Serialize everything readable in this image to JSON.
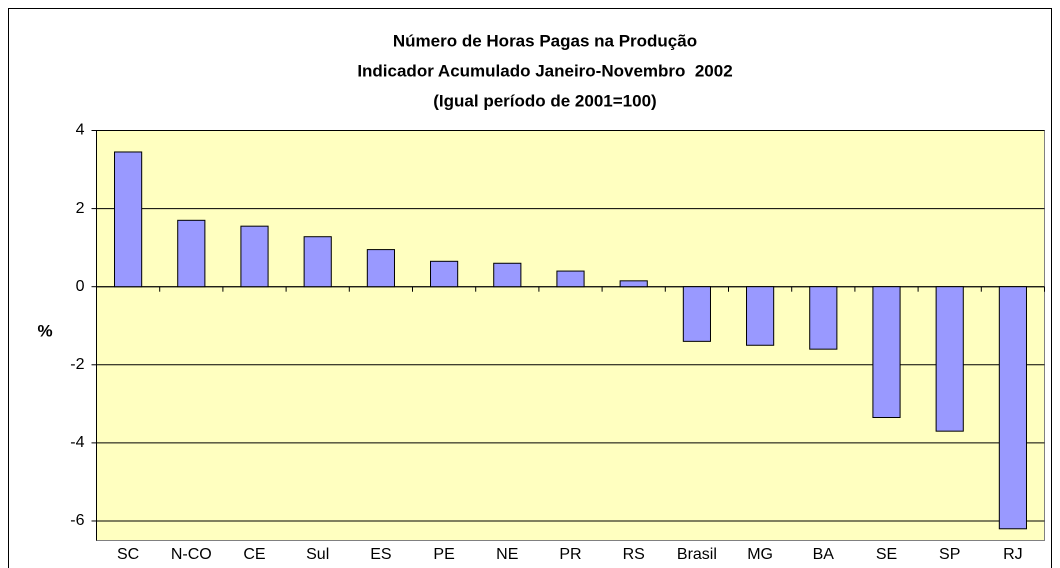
{
  "chart_data": {
    "type": "bar",
    "title_lines": [
      "Número de Horas Pagas na Produção",
      "Indicador Acumulado Janeiro-Novembro  2002",
      "(Igual período de 2001=100)"
    ],
    "y_label": "%",
    "categories": [
      "SC",
      "N-CO",
      "CE",
      "Sul",
      "ES",
      "PE",
      "NE",
      "PR",
      "RS",
      "Brasil",
      "MG",
      "BA",
      "SE",
      "SP",
      "RJ"
    ],
    "values": [
      3.45,
      1.7,
      1.55,
      1.28,
      0.95,
      0.65,
      0.6,
      0.4,
      0.15,
      -1.4,
      -1.5,
      -1.6,
      -3.35,
      -3.7,
      -6.2
    ],
    "color": "#9999ff",
    "ylim": [
      -6.5,
      4
    ],
    "yticks": [
      4,
      2,
      0,
      -2,
      -4,
      -6
    ],
    "grid": true
  }
}
